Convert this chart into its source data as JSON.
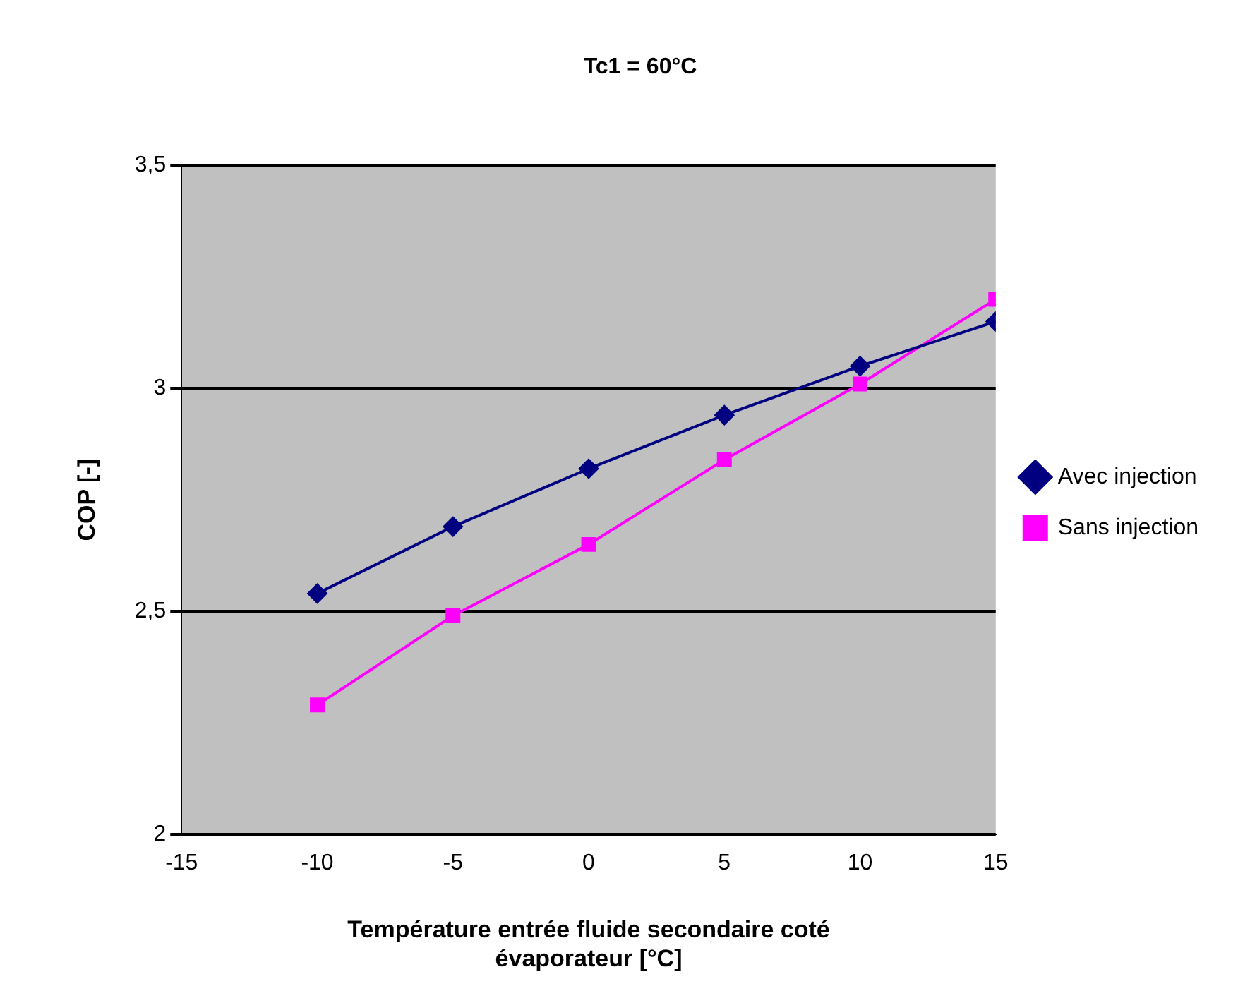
{
  "chart_data": {
    "type": "line",
    "title": "Tc1 = 60°C",
    "xlabel": "Température entrée fluide secondaire coté évaporateur [°C]",
    "ylabel": "COP [-]",
    "x": [
      -10,
      -5,
      0,
      5,
      10,
      15
    ],
    "series": [
      {
        "name": "Avec injection",
        "color": "#000080",
        "marker": "diamond",
        "values": [
          2.54,
          2.69,
          2.82,
          2.94,
          3.05,
          3.15
        ]
      },
      {
        "name": "Sans injection",
        "color": "#ff00ff",
        "marker": "square",
        "values": [
          2.29,
          2.49,
          2.65,
          2.84,
          3.01,
          3.2
        ]
      }
    ],
    "xlim": [
      -15,
      15
    ],
    "xticks": [
      -15,
      -10,
      -5,
      0,
      5,
      10,
      15
    ],
    "ylim": [
      2,
      3.5
    ],
    "yticks": [
      2,
      {
        "value": 2.5,
        "label": "2,5"
      },
      3,
      {
        "value": 3.5,
        "label": "3,5"
      }
    ],
    "grid": "y",
    "legend": "right",
    "line_style": "solid"
  }
}
